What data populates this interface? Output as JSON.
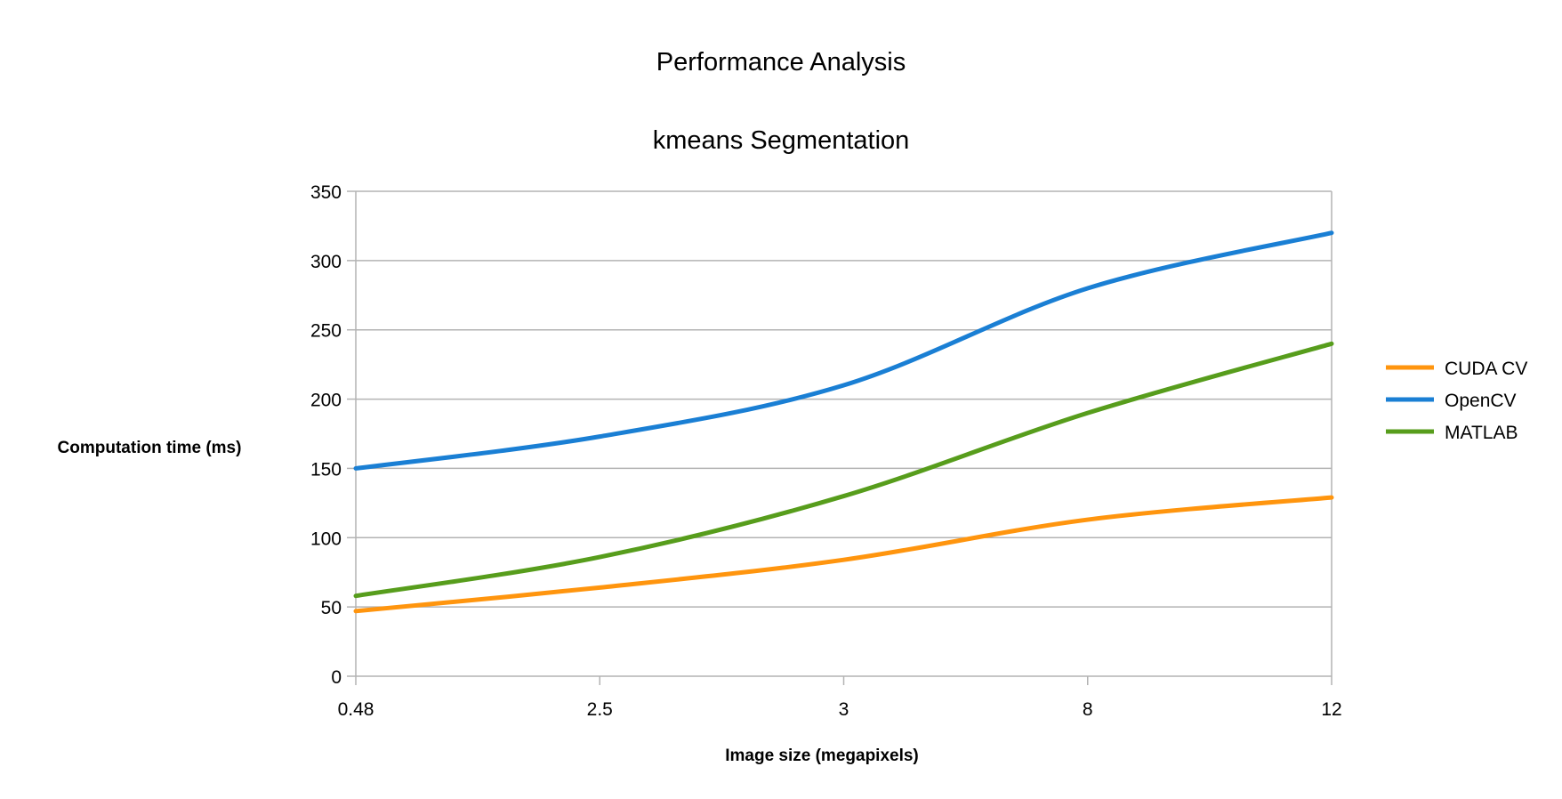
{
  "chart_data": {
    "type": "line",
    "title": "Performance Analysis",
    "subtitle": "kmeans Segmentation",
    "xlabel": "Image size (megapixels)",
    "ylabel": "Computation time (ms)",
    "categories": [
      "0.48",
      "2.5",
      "3",
      "8",
      "12"
    ],
    "ylim": [
      0,
      350
    ],
    "yticks": [
      0,
      50,
      100,
      150,
      200,
      250,
      300,
      350
    ],
    "grid": true,
    "legend_position": "right",
    "smooth": true,
    "series": [
      {
        "name": "CUDA CV",
        "color": "#ff950e",
        "values": [
          47,
          64,
          84,
          113,
          129
        ]
      },
      {
        "name": "OpenCV",
        "color": "#1a7fd4",
        "values": [
          150,
          173,
          210,
          280,
          320
        ]
      },
      {
        "name": "MATLAB",
        "color": "#579d1c",
        "values": [
          58,
          86,
          130,
          190,
          240
        ]
      }
    ]
  }
}
